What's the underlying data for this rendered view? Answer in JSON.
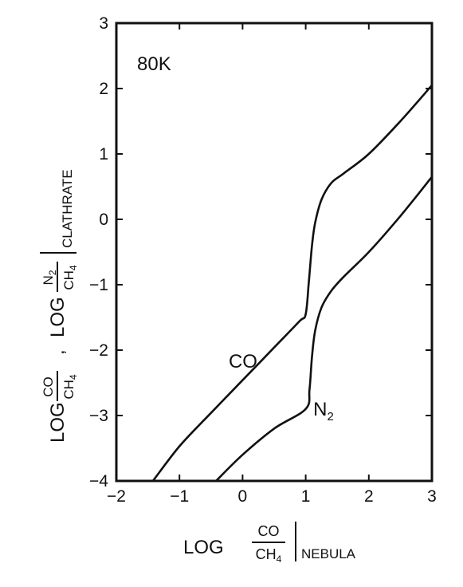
{
  "chart_data": {
    "type": "line",
    "annotation": "80K",
    "xlim": [
      -2,
      3
    ],
    "ylim": [
      -4,
      3
    ],
    "x_ticks": [
      "-2",
      "-1",
      "0",
      "1",
      "2",
      "3"
    ],
    "y_ticks": [
      "-4",
      "-3",
      "-2",
      "-1",
      "0",
      "1",
      "2",
      "3"
    ],
    "xlabel": {
      "prefix": "LOG",
      "numerator": "CO",
      "denominator": "CH4",
      "subscript": "NEBULA"
    },
    "ylabel": {
      "prefix1": "LOG",
      "numerator1": "CO",
      "denominator1": "CH4",
      "separator": ",",
      "prefix2": "LOG",
      "numerator2": "N2",
      "denominator2": "CH4",
      "subscript": "CLATHRATE"
    },
    "series": [
      {
        "name": "CO",
        "x": [
          -1.42,
          -1.0,
          -0.5,
          0.0,
          0.5,
          0.9,
          1.0,
          1.05,
          1.1,
          1.15,
          1.25,
          1.4,
          1.6,
          2.0,
          2.5,
          3.0
        ],
        "y": [
          -4.0,
          -3.47,
          -2.96,
          -2.46,
          -1.96,
          -1.56,
          -1.45,
          -0.95,
          -0.4,
          -0.05,
          0.3,
          0.55,
          0.7,
          1.0,
          1.5,
          2.05
        ]
      },
      {
        "name": "N2",
        "x": [
          -0.42,
          0.0,
          0.5,
          1.0,
          1.06,
          1.1,
          1.15,
          1.25,
          1.4,
          1.6,
          2.0,
          2.5,
          3.0
        ],
        "y": [
          -4.0,
          -3.6,
          -3.2,
          -2.9,
          -2.6,
          -2.1,
          -1.7,
          -1.35,
          -1.1,
          -0.88,
          -0.5,
          0.05,
          0.65
        ]
      }
    ],
    "series_label_positions": [
      {
        "name": "CO",
        "x": -0.22,
        "y": -2.27
      },
      {
        "name": "N2",
        "x": 1.12,
        "y": -3.0
      }
    ]
  }
}
